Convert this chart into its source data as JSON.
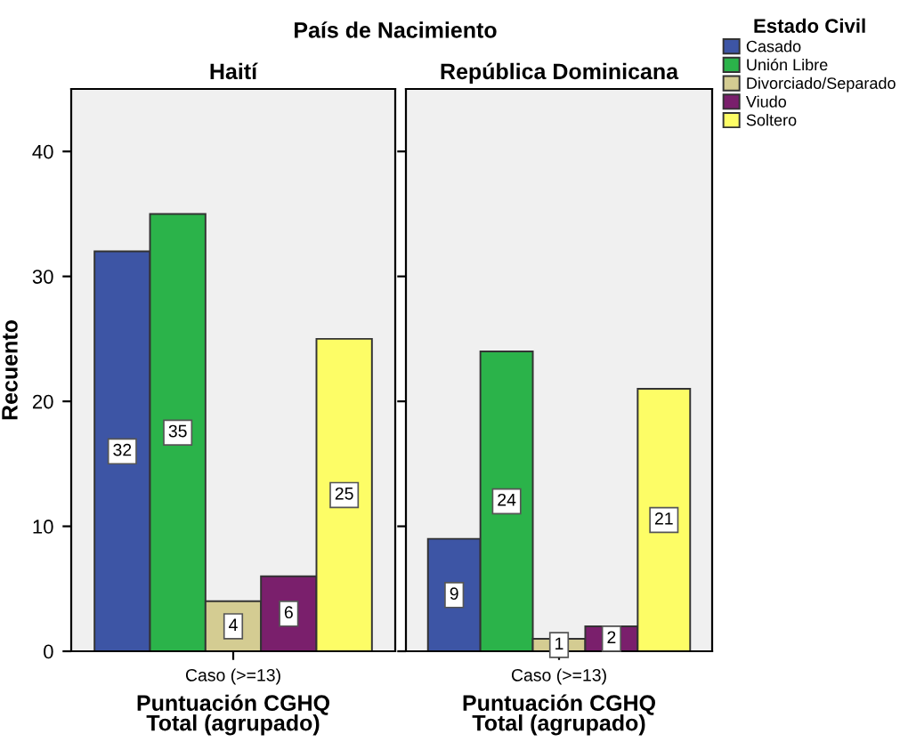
{
  "chart_data": [
    {
      "type": "bar",
      "title": "Haití",
      "annotations": [
        "País de Nacimiento"
      ],
      "xlabel": "Puntuación CGHQ\nTotal (agrupado)",
      "ylabel": "Recuento",
      "categories": [
        null,
        null,
        "Caso (>=13)",
        null,
        null
      ],
      "stacked": true,
      "legend_title": "Estado Civil",
      "legend": "right",
      "series": [
        {
          "name": "Casado",
          "color": "#3d55a5",
          "values": [
            32,
            null,
            null,
            null,
            null
          ]
        },
        {
          "name": "Unión Libre",
          "color": "#2bb34a",
          "values": [
            null,
            35,
            null,
            null,
            null
          ]
        },
        {
          "name": "Divorciado/Separado",
          "color": "#d4cc92",
          "values": [
            null,
            null,
            4,
            null,
            null
          ]
        },
        {
          "name": "Viudo",
          "color": "#7a1f6c",
          "values": [
            null,
            null,
            null,
            6,
            null
          ]
        },
        {
          "name": "Soltero",
          "color": "#fdfd66",
          "values": [
            null,
            null,
            null,
            null,
            25
          ]
        }
      ],
      "ylim": [
        0,
        45
      ],
      "yticks": [
        0,
        10,
        20,
        30,
        40
      ],
      "data_labels": true
    },
    {
      "type": "bar",
      "title": "República Dominicana",
      "xlabel": "Puntuación CGHQ\nTotal (agrupado)",
      "categories": [
        null,
        null,
        "Caso (>=13)",
        null,
        null
      ],
      "stacked": true,
      "series": [
        {
          "name": "Casado",
          "color": "#3d55a5",
          "values": [
            9,
            null,
            null,
            null,
            null
          ]
        },
        {
          "name": "Unión Libre",
          "color": "#2bb34a",
          "values": [
            null,
            24,
            null,
            null,
            null
          ]
        },
        {
          "name": "Divorciado/Separado",
          "color": "#d4cc92",
          "values": [
            null,
            null,
            1,
            null,
            null
          ]
        },
        {
          "name": "Viudo",
          "color": "#7a1f6c",
          "values": [
            null,
            null,
            null,
            2,
            null
          ]
        },
        {
          "name": "Soltero",
          "color": "#fdfd66",
          "values": [
            null,
            null,
            null,
            null,
            21
          ]
        }
      ],
      "ylim": [
        0,
        45
      ],
      "yticks": [
        0,
        10,
        20,
        30,
        40
      ],
      "tick_labels": "x",
      "data_labels": true
    }
  ]
}
